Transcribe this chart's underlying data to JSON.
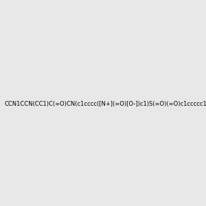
{
  "smiles": "CCN1CCN(CC1)C(=O)CN(c1cccc([N+](=O)[O-])c1)S(=O)(=O)c1ccccc1",
  "background_color": "#e8e8e8",
  "fig_size": [
    3.0,
    3.0
  ],
  "dpi": 100
}
